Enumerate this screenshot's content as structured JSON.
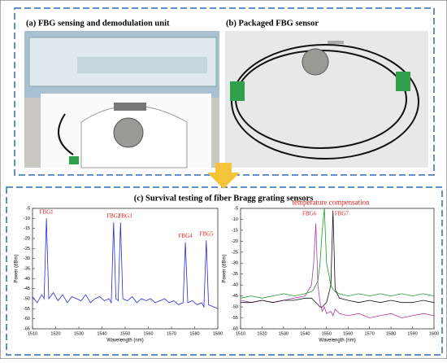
{
  "panels": {
    "a": "(a) FBG sensing and demodulation unit",
    "b": "(b) Packaged FBG sensor",
    "c": "(c) Survival testing of fiber Bragg grating sensors"
  },
  "chart_data": [
    {
      "type": "line",
      "xlabel": "Wavelength (nm)",
      "ylabel": "Power (dBm)",
      "x": [
        1510,
        1512,
        1514,
        1515,
        1516,
        1517,
        1519,
        1521,
        1523,
        1525,
        1527,
        1529,
        1531,
        1533,
        1535,
        1537,
        1539,
        1541,
        1543,
        1544,
        1545,
        1546,
        1547,
        1548,
        1549,
        1551,
        1553,
        1555,
        1557,
        1559,
        1561,
        1563,
        1565,
        1567,
        1569,
        1571,
        1573,
        1575,
        1576,
        1577,
        1579,
        1581,
        1583,
        1584,
        1585,
        1586,
        1588,
        1590
      ],
      "series": [
        {
          "color": "#2a2ad8",
          "values": [
            -49,
            -52,
            -48,
            -50,
            -10,
            -50,
            -47,
            -51,
            -48,
            -52,
            -49,
            -50,
            -51,
            -48,
            -52,
            -50,
            -49,
            -51,
            -50,
            -52,
            -12,
            -50,
            -51,
            -12,
            -50,
            -51,
            -49,
            -52,
            -50,
            -51,
            -50,
            -52,
            -51,
            -50,
            -52,
            -51,
            -53,
            -52,
            -22,
            -52,
            -51,
            -53,
            -52,
            -54,
            -21,
            -53,
            -54,
            -55
          ]
        }
      ],
      "annotations": [
        "FBG1",
        "FBG2",
        "FBG3",
        "FBG4",
        "FBG5"
      ],
      "xlim": [
        1510,
        1590
      ],
      "xticks": [
        1510,
        1520,
        1530,
        1540,
        1550,
        1560,
        1570,
        1580,
        1590
      ],
      "ylim": [
        -65,
        -5
      ],
      "yticks": [
        -5,
        -10,
        -15,
        -20,
        -25,
        -30,
        -35,
        -40,
        -45,
        -50,
        -55,
        -60,
        -65
      ]
    },
    {
      "type": "line",
      "xlabel": "Wavelength (nm)",
      "ylabel": "Power (dBm)",
      "x": [
        1510,
        1515,
        1520,
        1525,
        1530,
        1535,
        1540,
        1543,
        1544,
        1545,
        1546,
        1547,
        1548,
        1549,
        1550,
        1552,
        1553,
        1554,
        1556,
        1560,
        1565,
        1570,
        1575,
        1580,
        1585,
        1590,
        1595,
        1600
      ],
      "series": [
        {
          "color": "#b03aa8",
          "values": [
            -47,
            -48,
            -47,
            -48,
            -47,
            -46,
            -45,
            -40,
            -30,
            -12,
            -40,
            -48,
            -52,
            -50,
            -53,
            -52,
            -54,
            -51,
            -53,
            -54,
            -53,
            -55,
            -54,
            -53,
            -55,
            -54,
            -53,
            -54
          ]
        },
        {
          "color": "#1e9a2a",
          "values": [
            -46,
            -45,
            -46,
            -45,
            -44,
            -45,
            -44,
            -43,
            -42,
            -40,
            -38,
            -30,
            -15,
            -5,
            -30,
            -40,
            -42,
            -43,
            -44,
            -45,
            -44,
            -45,
            -44,
            -45,
            -44,
            -45,
            -44,
            -45
          ]
        },
        {
          "color": "#111111",
          "values": [
            -48,
            -48,
            -47,
            -48,
            -47,
            -47,
            -46,
            -46,
            -47,
            -48,
            -49,
            -50,
            -50,
            -49,
            -48,
            -40,
            -6,
            -42,
            -46,
            -47,
            -48,
            -47,
            -48,
            -47,
            -48,
            -48,
            -47,
            -48
          ]
        }
      ],
      "annotations": [
        "temperature compensation",
        "FBG6",
        "FBG7"
      ],
      "xlim": [
        1510,
        1600
      ],
      "xticks": [
        1510,
        1520,
        1530,
        1540,
        1550,
        1560,
        1570,
        1580,
        1590,
        1600
      ],
      "ylim": [
        -60,
        -5
      ],
      "yticks": [
        -5,
        -10,
        -15,
        -20,
        -25,
        -30,
        -35,
        -40,
        -45,
        -50,
        -55,
        -60
      ]
    }
  ]
}
